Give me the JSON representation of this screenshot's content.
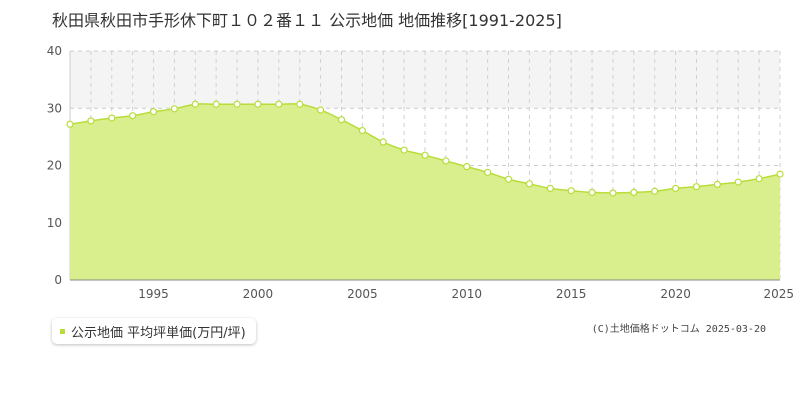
{
  "chart_data": {
    "type": "area",
    "title": "秋田県秋田市手形休下町１０２番１１ 公示地価 地価推移[1991-2025]",
    "xlabel": "",
    "ylabel": "",
    "xlim": [
      1991,
      2025
    ],
    "ylim": [
      0,
      40
    ],
    "yticks": [
      0,
      10,
      20,
      30,
      40
    ],
    "xticks": [
      1995,
      2000,
      2005,
      2010,
      2015,
      2020,
      2025
    ],
    "grid": true,
    "legend_position": "bottom-left",
    "series": [
      {
        "name": "公示地価 平均坪単価(万円/坪)",
        "color": "#b8dd3a",
        "fill": "#d9ee8c",
        "x": [
          1991,
          1992,
          1993,
          1994,
          1995,
          1996,
          1997,
          1998,
          1999,
          2000,
          2001,
          2002,
          2003,
          2004,
          2005,
          2006,
          2007,
          2008,
          2009,
          2010,
          2011,
          2012,
          2013,
          2014,
          2015,
          2016,
          2017,
          2018,
          2019,
          2020,
          2021,
          2022,
          2023,
          2024,
          2025
        ],
        "values": [
          27.2,
          27.8,
          28.3,
          28.7,
          29.4,
          29.9,
          30.7,
          30.7,
          30.7,
          30.7,
          30.7,
          30.7,
          29.7,
          28.0,
          26.1,
          24.1,
          22.7,
          21.8,
          20.8,
          19.8,
          18.8,
          17.6,
          16.8,
          16.0,
          15.6,
          15.3,
          15.2,
          15.3,
          15.5,
          16.0,
          16.3,
          16.7,
          17.1,
          17.7,
          18.5
        ]
      }
    ]
  },
  "credit": "(C)土地価格ドットコム 2025-03-20"
}
